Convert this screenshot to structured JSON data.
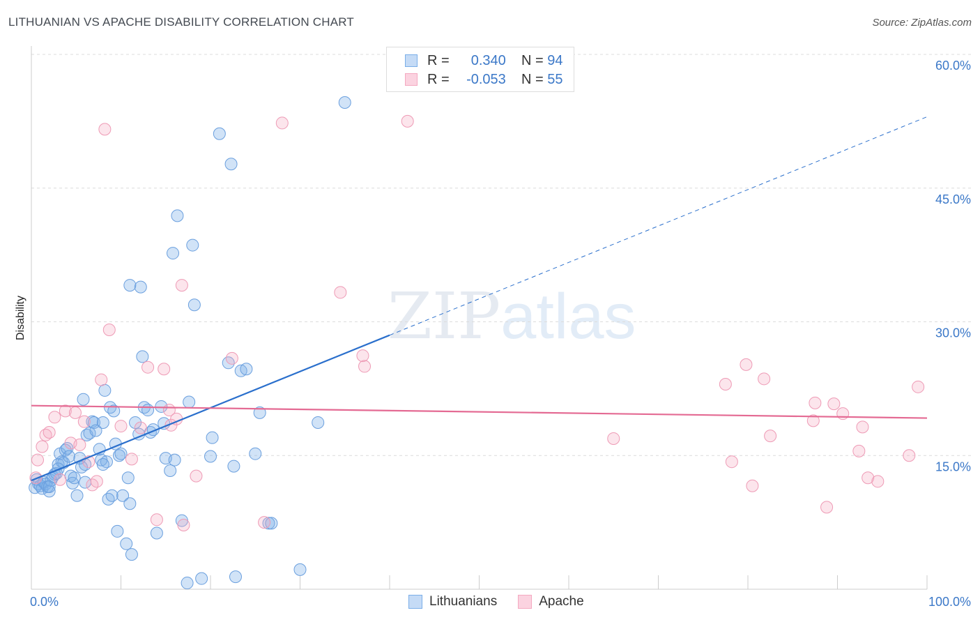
{
  "title": "LITHUANIAN VS APACHE DISABILITY CORRELATION CHART",
  "source": "Source: ZipAtlas.com",
  "watermark": {
    "zip": "ZIP",
    "atlas": "atlas"
  },
  "legend": {
    "rows": [
      {
        "r_label": "R =",
        "r_value": "0.340",
        "n_label": "N =",
        "n_value": "94"
      },
      {
        "r_label": "R =",
        "r_value": "-0.053",
        "n_label": "N =",
        "n_value": "55"
      }
    ]
  },
  "colors": {
    "blue": "#7aaee8",
    "blue_line": "#2a6fcc",
    "pink": "#f4a8c0",
    "pink_line": "#e46a93",
    "tick": "#3b78c8"
  },
  "chart_data": {
    "type": "scatter",
    "title": "LITHUANIAN VS APACHE DISABILITY CORRELATION CHART",
    "xlabel": "",
    "ylabel": "Disability",
    "xlim": [
      0,
      100
    ],
    "ylim": [
      0,
      60
    ],
    "x_tick_labels": [
      "0.0%",
      "100.0%"
    ],
    "y_ticks": [
      15,
      30,
      45,
      60
    ],
    "y_tick_labels": [
      "15.0%",
      "30.0%",
      "45.0%",
      "60.0%"
    ],
    "grid": true,
    "legend_position": "top-center",
    "series": [
      {
        "name": "Lithuanians",
        "color": "#7aaee8",
        "trend": {
          "x0": 0,
          "y0": 12.2,
          "x1": 40,
          "y1": 28.5,
          "dashed_to_x": 100,
          "dashed_to_y": 53
        },
        "points": [
          [
            0.4,
            11.4
          ],
          [
            0.6,
            12.3
          ],
          [
            0.8,
            11.8
          ],
          [
            1.0,
            11.6
          ],
          [
            1.2,
            11.3
          ],
          [
            1.4,
            12.0
          ],
          [
            1.6,
            11.8
          ],
          [
            1.8,
            11.5
          ],
          [
            2.0,
            11.0
          ],
          [
            2.2,
            12.2
          ],
          [
            2.4,
            12.6
          ],
          [
            2.6,
            12.9
          ],
          [
            2.8,
            13.0
          ],
          [
            3.0,
            14.0
          ],
          [
            3.2,
            15.2
          ],
          [
            3.4,
            14.3
          ],
          [
            3.6,
            14.2
          ],
          [
            3.8,
            15.6
          ],
          [
            4.0,
            15.8
          ],
          [
            4.2,
            14.9
          ],
          [
            4.4,
            12.7
          ],
          [
            4.6,
            11.9
          ],
          [
            4.8,
            12.5
          ],
          [
            5.1,
            10.5
          ],
          [
            5.4,
            14.7
          ],
          [
            5.6,
            13.7
          ],
          [
            5.8,
            21.3
          ],
          [
            6.0,
            12.0
          ],
          [
            6.2,
            17.3
          ],
          [
            6.5,
            17.5
          ],
          [
            6.8,
            18.8
          ],
          [
            7.0,
            18.7
          ],
          [
            7.2,
            17.8
          ],
          [
            7.6,
            15.7
          ],
          [
            7.8,
            14.5
          ],
          [
            8.0,
            18.7
          ],
          [
            8.2,
            22.3
          ],
          [
            8.4,
            14.3
          ],
          [
            8.6,
            10.1
          ],
          [
            8.8,
            20.4
          ],
          [
            9.0,
            10.5
          ],
          [
            9.2,
            20.0
          ],
          [
            9.4,
            16.3
          ],
          [
            9.6,
            6.5
          ],
          [
            9.8,
            15.0
          ],
          [
            10.0,
            15.2
          ],
          [
            10.2,
            10.5
          ],
          [
            10.6,
            5.1
          ],
          [
            10.8,
            12.5
          ],
          [
            11.0,
            9.6
          ],
          [
            11.2,
            3.9
          ],
          [
            11.6,
            18.7
          ],
          [
            12.0,
            17.4
          ],
          [
            12.2,
            33.9
          ],
          [
            12.6,
            20.4
          ],
          [
            13.0,
            20.1
          ],
          [
            13.3,
            17.6
          ],
          [
            13.6,
            17.9
          ],
          [
            14.0,
            6.3
          ],
          [
            14.5,
            20.5
          ],
          [
            14.8,
            18.6
          ],
          [
            15.0,
            14.7
          ],
          [
            15.5,
            13.3
          ],
          [
            15.8,
            37.7
          ],
          [
            16.0,
            14.5
          ],
          [
            16.3,
            41.9
          ],
          [
            16.8,
            7.7
          ],
          [
            17.4,
            0.7
          ],
          [
            17.6,
            21.0
          ],
          [
            18.0,
            38.6
          ],
          [
            18.2,
            31.9
          ],
          [
            19.0,
            1.2
          ],
          [
            20.0,
            14.9
          ],
          [
            20.2,
            17.0
          ],
          [
            21.0,
            51.1
          ],
          [
            22.0,
            25.4
          ],
          [
            22.3,
            47.7
          ],
          [
            22.8,
            1.4
          ],
          [
            22.6,
            13.8
          ],
          [
            23.4,
            24.5
          ],
          [
            24.0,
            24.7
          ],
          [
            25.0,
            15.2
          ],
          [
            25.5,
            19.8
          ],
          [
            26.5,
            7.4
          ],
          [
            26.8,
            7.4
          ],
          [
            30.0,
            2.2
          ],
          [
            32.0,
            18.7
          ],
          [
            35.0,
            54.6
          ],
          [
            11.0,
            34.1
          ],
          [
            12.4,
            26.1
          ],
          [
            3.0,
            13.5
          ],
          [
            6.0,
            14.0
          ],
          [
            8.0,
            14.0
          ],
          [
            2.0,
            11.5
          ]
        ]
      },
      {
        "name": "Apache",
        "color": "#f4a8c0",
        "trend": {
          "x0": 0,
          "y0": 20.6,
          "x1": 100,
          "y1": 19.2
        },
        "points": [
          [
            0.5,
            12.5
          ],
          [
            0.7,
            14.5
          ],
          [
            1.2,
            16.0
          ],
          [
            1.6,
            17.3
          ],
          [
            2.0,
            17.6
          ],
          [
            2.6,
            19.3
          ],
          [
            3.2,
            12.3
          ],
          [
            3.8,
            20.0
          ],
          [
            4.4,
            16.4
          ],
          [
            4.9,
            19.8
          ],
          [
            5.4,
            16.2
          ],
          [
            5.9,
            18.8
          ],
          [
            6.4,
            14.3
          ],
          [
            6.8,
            11.7
          ],
          [
            7.3,
            12.1
          ],
          [
            7.8,
            23.5
          ],
          [
            8.2,
            51.6
          ],
          [
            8.7,
            29.1
          ],
          [
            10.0,
            18.3
          ],
          [
            11.2,
            14.6
          ],
          [
            12.2,
            18.1
          ],
          [
            13.0,
            24.9
          ],
          [
            14.0,
            7.8
          ],
          [
            14.8,
            24.7
          ],
          [
            15.4,
            20.1
          ],
          [
            15.6,
            18.4
          ],
          [
            16.2,
            19.1
          ],
          [
            16.8,
            34.1
          ],
          [
            17.0,
            7.2
          ],
          [
            18.4,
            12.7
          ],
          [
            22.4,
            25.9
          ],
          [
            26.0,
            7.5
          ],
          [
            28.0,
            52.3
          ],
          [
            34.5,
            33.3
          ],
          [
            37.0,
            26.2
          ],
          [
            37.2,
            25.0
          ],
          [
            42.0,
            52.5
          ],
          [
            65.0,
            16.9
          ],
          [
            77.5,
            23.0
          ],
          [
            78.2,
            14.3
          ],
          [
            79.8,
            25.2
          ],
          [
            80.5,
            11.6
          ],
          [
            81.8,
            23.6
          ],
          [
            82.5,
            17.2
          ],
          [
            87.5,
            20.9
          ],
          [
            87.3,
            18.9
          ],
          [
            88.8,
            9.2
          ],
          [
            89.6,
            20.8
          ],
          [
            90.6,
            19.7
          ],
          [
            92.8,
            18.2
          ],
          [
            92.4,
            15.5
          ],
          [
            93.4,
            12.5
          ],
          [
            94.5,
            12.1
          ],
          [
            98.0,
            15.0
          ],
          [
            99.0,
            22.7
          ]
        ]
      }
    ]
  },
  "bottom_legend": [
    {
      "label": "Lithuanians"
    },
    {
      "label": "Apache"
    }
  ]
}
